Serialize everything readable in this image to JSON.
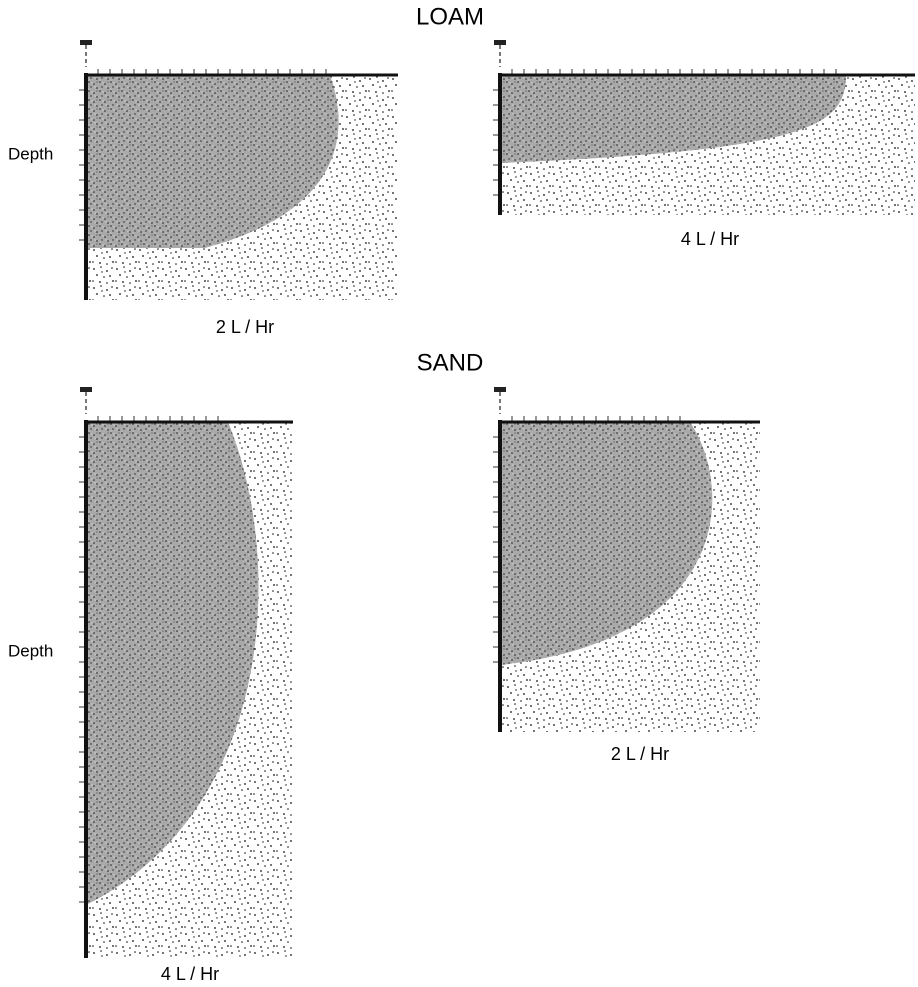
{
  "sections": [
    {
      "title": "LOAM",
      "panels": [
        {
          "axis_label": "Depth",
          "label": "2 L / Hr"
        },
        {
          "label": "4 L / Hr"
        }
      ]
    },
    {
      "title": "SAND",
      "panels": [
        {
          "axis_label": "Depth",
          "label": "4 L / Hr"
        },
        {
          "label": "2 L / Hr"
        }
      ]
    }
  ]
}
